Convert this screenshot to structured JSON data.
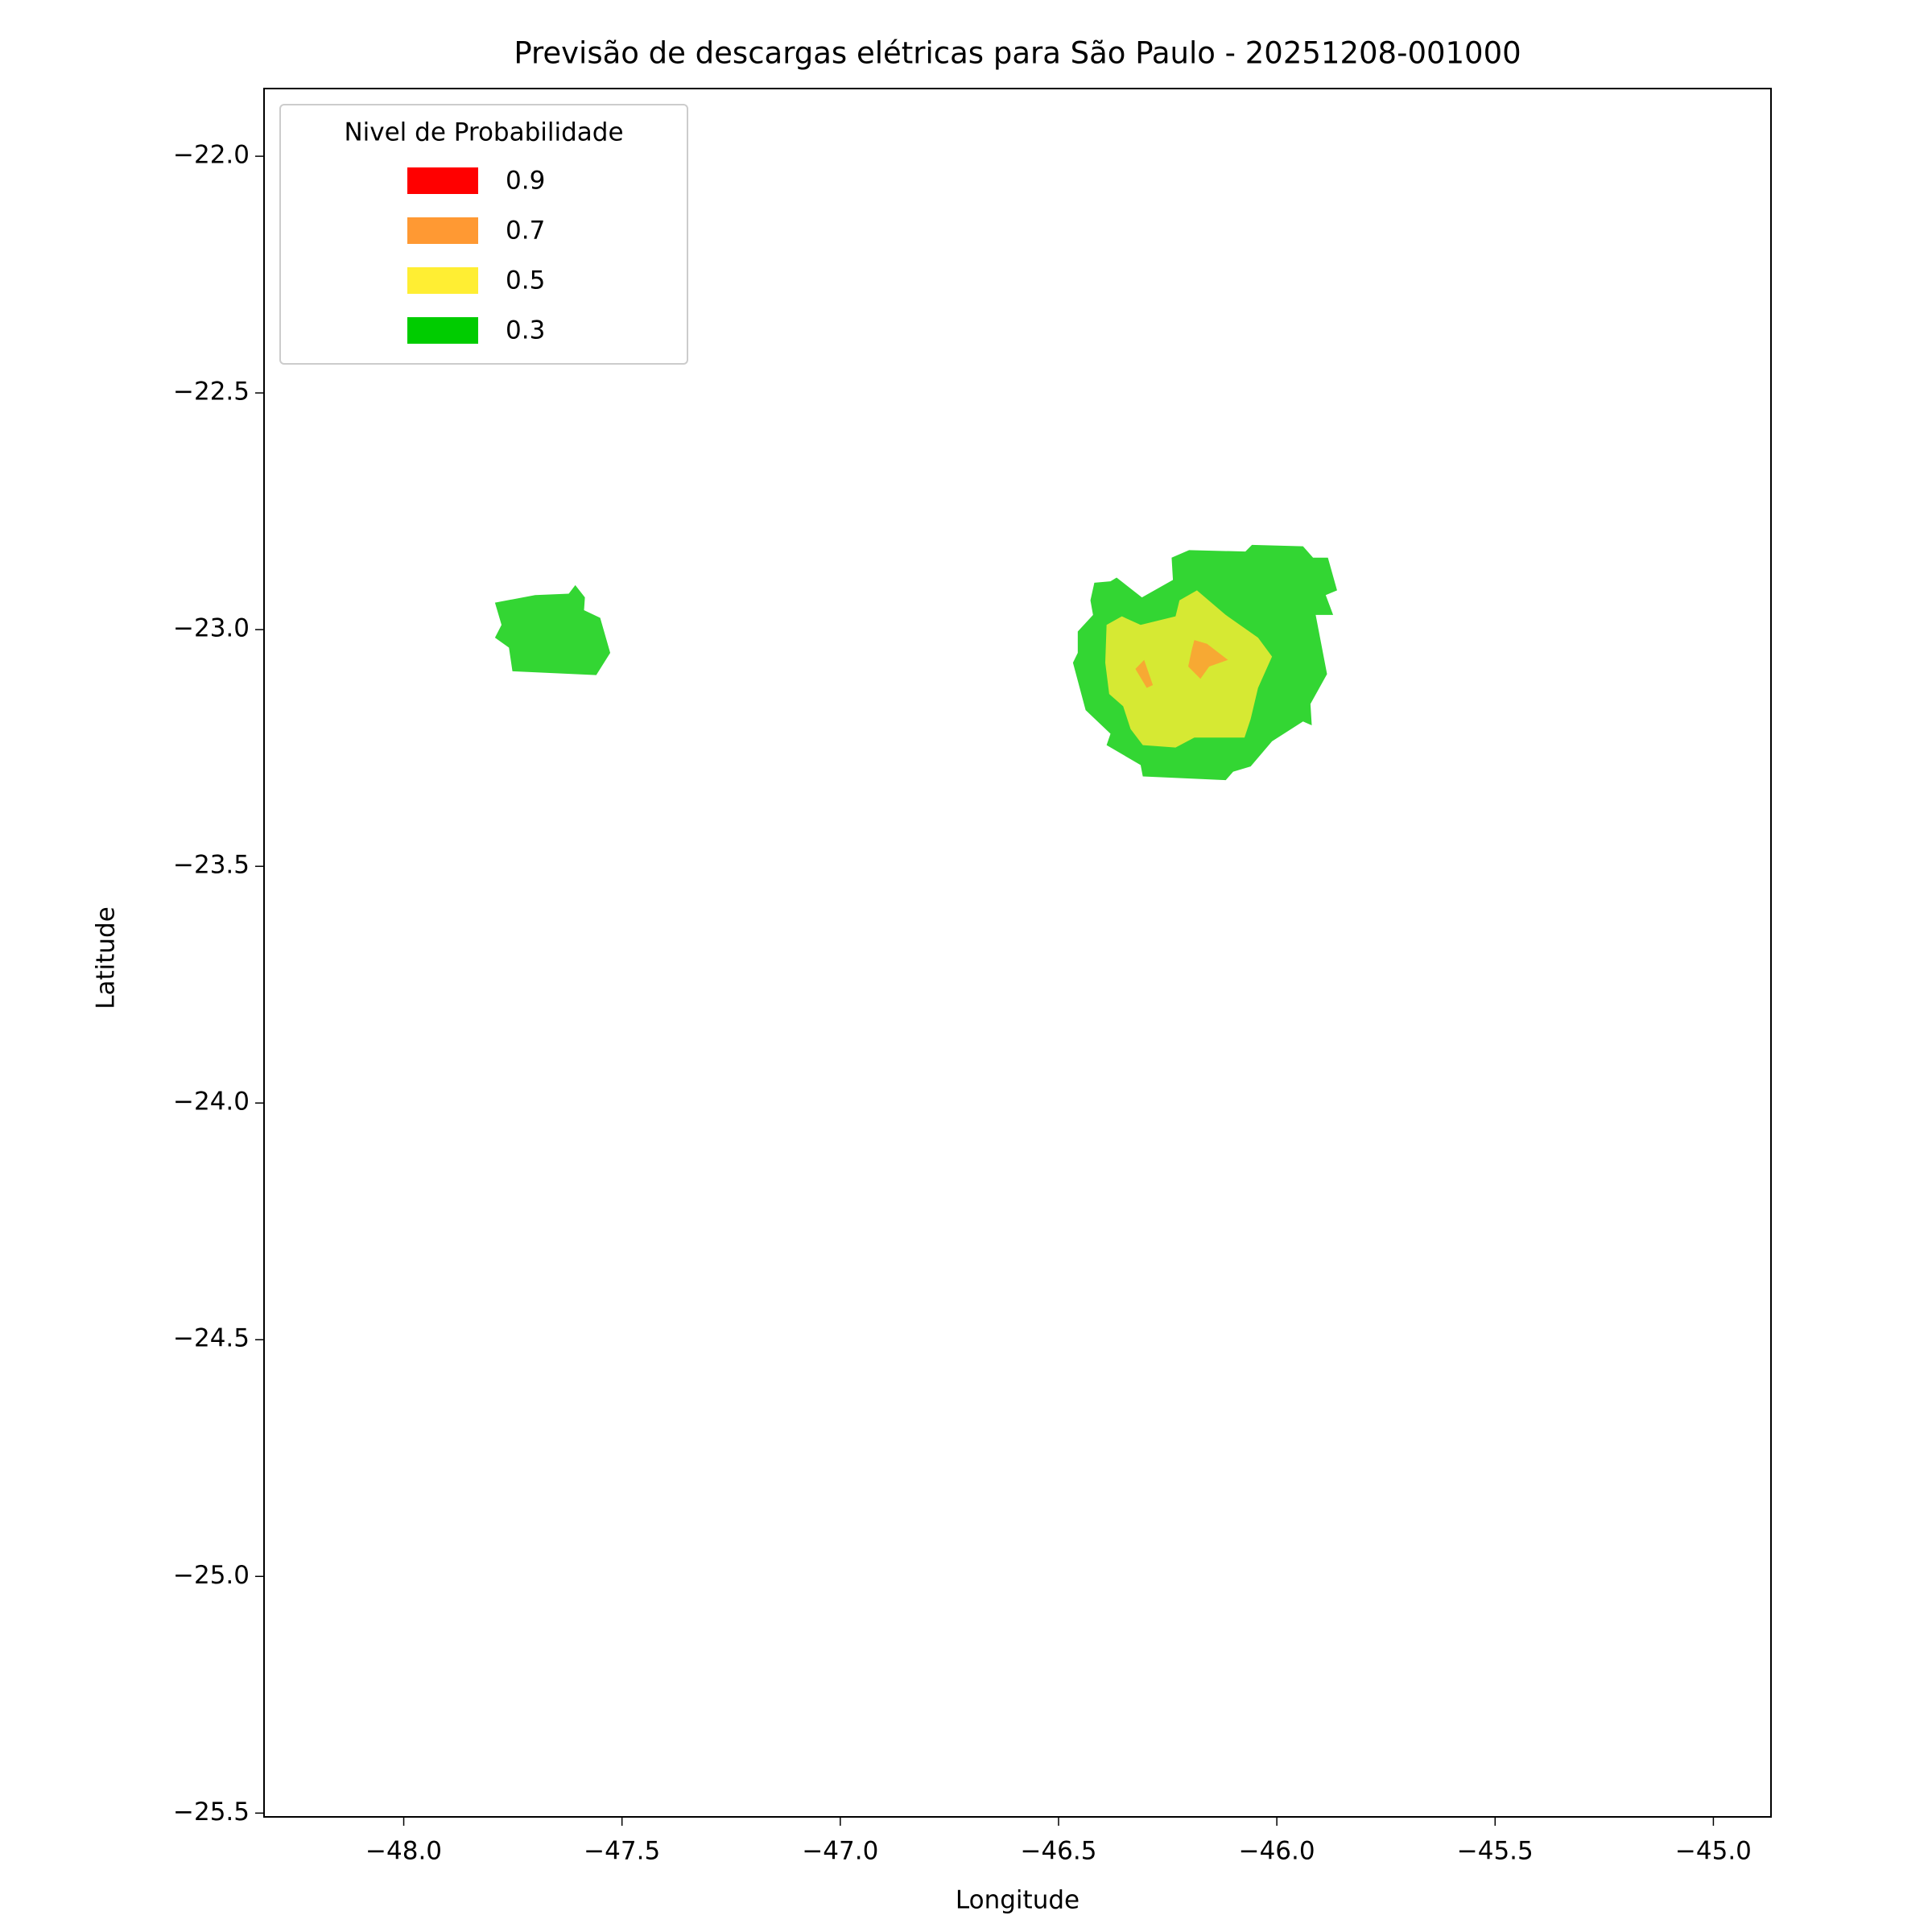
{
  "chart_data": {
    "type": "contour",
    "title": "Previsão de descargas elétricas para São Paulo - 20251208-001000",
    "x_label": "Longitude",
    "y_label": "Latitude",
    "xlim": [
      -48.32,
      -44.868
    ],
    "ylim": [
      -25.508,
      -21.857
    ],
    "xticks": [
      {
        "value": -48.0,
        "label": "−48.0"
      },
      {
        "value": -47.5,
        "label": "−47.5"
      },
      {
        "value": -47.0,
        "label": "−47.0"
      },
      {
        "value": -46.5,
        "label": "−46.5"
      },
      {
        "value": -46.0,
        "label": "−46.0"
      },
      {
        "value": -45.5,
        "label": "−45.5"
      },
      {
        "value": -45.0,
        "label": "−45.0"
      }
    ],
    "yticks": [
      {
        "value": -22.0,
        "label": "−22.0"
      },
      {
        "value": -22.5,
        "label": "−22.5"
      },
      {
        "value": -23.0,
        "label": "−23.0"
      },
      {
        "value": -23.5,
        "label": "−23.5"
      },
      {
        "value": -24.0,
        "label": "−24.0"
      },
      {
        "value": -24.5,
        "label": "−24.5"
      },
      {
        "value": -25.0,
        "label": "−25.0"
      },
      {
        "value": -25.5,
        "label": "−25.5"
      }
    ],
    "legend_title": "Nivel de Probabilidade",
    "legend_position": "upper left",
    "alpha": 0.8,
    "series": [
      {
        "name": "0.9",
        "color": "#ff0000",
        "polygons": []
      },
      {
        "name": "0.7",
        "color": "#ff9933",
        "polygons": [
          {
            "x": [
              -46.189,
              -46.16,
              -46.112,
              -46.155,
              -46.175,
              -46.203,
              -46.195
            ],
            "y": [
              -23.022,
              -23.03,
              -23.064,
              -23.078,
              -23.104,
              -23.078,
              -23.043
            ]
          },
          {
            "x": [
              -46.324,
              -46.304,
              -46.284,
              -46.298
            ],
            "y": [
              -23.083,
              -23.064,
              -23.117,
              -23.123
            ]
          }
        ]
      },
      {
        "name": "0.5",
        "color": "#ffee33",
        "polygons": [
          {
            "x": [
              -46.39,
              -46.355,
              -46.312,
              -46.232,
              -46.223,
              -46.183,
              -46.117,
              -46.043,
              -46.011,
              -46.043,
              -46.06,
              -46.074,
              -46.189,
              -46.232,
              -46.307,
              -46.335,
              -46.352,
              -46.384,
              -46.393
            ],
            "y": [
              -22.99,
              -22.972,
              -22.99,
              -22.972,
              -22.938,
              -22.917,
              -22.969,
              -23.017,
              -23.057,
              -23.123,
              -23.189,
              -23.228,
              -23.228,
              -23.249,
              -23.244,
              -23.21,
              -23.162,
              -23.136,
              -23.07
            ]
          }
        ]
      },
      {
        "name": "0.3",
        "color": "#00cc00",
        "polygons": [
          {
            "x": [
              -47.791,
              -47.699,
              -47.622,
              -47.607,
              -47.585,
              -47.587,
              -47.55,
              -47.527,
              -47.559,
              -47.751,
              -47.759,
              -47.791,
              -47.776
            ],
            "y": [
              -22.943,
              -22.927,
              -22.924,
              -22.906,
              -22.932,
              -22.959,
              -22.975,
              -23.049,
              -23.096,
              -23.088,
              -23.038,
              -23.017,
              -22.99
            ]
          },
          {
            "x": [
              -46.418,
              -46.381,
              -46.367,
              -46.309,
              -46.238,
              -46.241,
              -46.201,
              -46.072,
              -46.057,
              -45.94,
              -45.917,
              -45.883,
              -45.862,
              -45.888,
              -45.871,
              -45.911,
              -45.885,
              -45.923,
              -45.92,
              -45.94,
              -46.011,
              -46.06,
              -46.1,
              -46.117,
              -46.307,
              -46.312,
              -46.39,
              -46.381,
              -46.438,
              -46.467,
              -46.456,
              -46.456,
              -46.421,
              -46.427
            ],
            "y": [
              -22.901,
              -22.898,
              -22.89,
              -22.932,
              -22.895,
              -22.848,
              -22.832,
              -22.835,
              -22.821,
              -22.824,
              -22.848,
              -22.848,
              -22.917,
              -22.927,
              -22.969,
              -22.969,
              -23.094,
              -23.157,
              -23.202,
              -23.194,
              -23.236,
              -23.289,
              -23.3,
              -23.318,
              -23.31,
              -23.286,
              -23.244,
              -23.22,
              -23.17,
              -23.07,
              -23.049,
              -23.004,
              -22.969,
              -22.938
            ]
          }
        ]
      }
    ]
  }
}
